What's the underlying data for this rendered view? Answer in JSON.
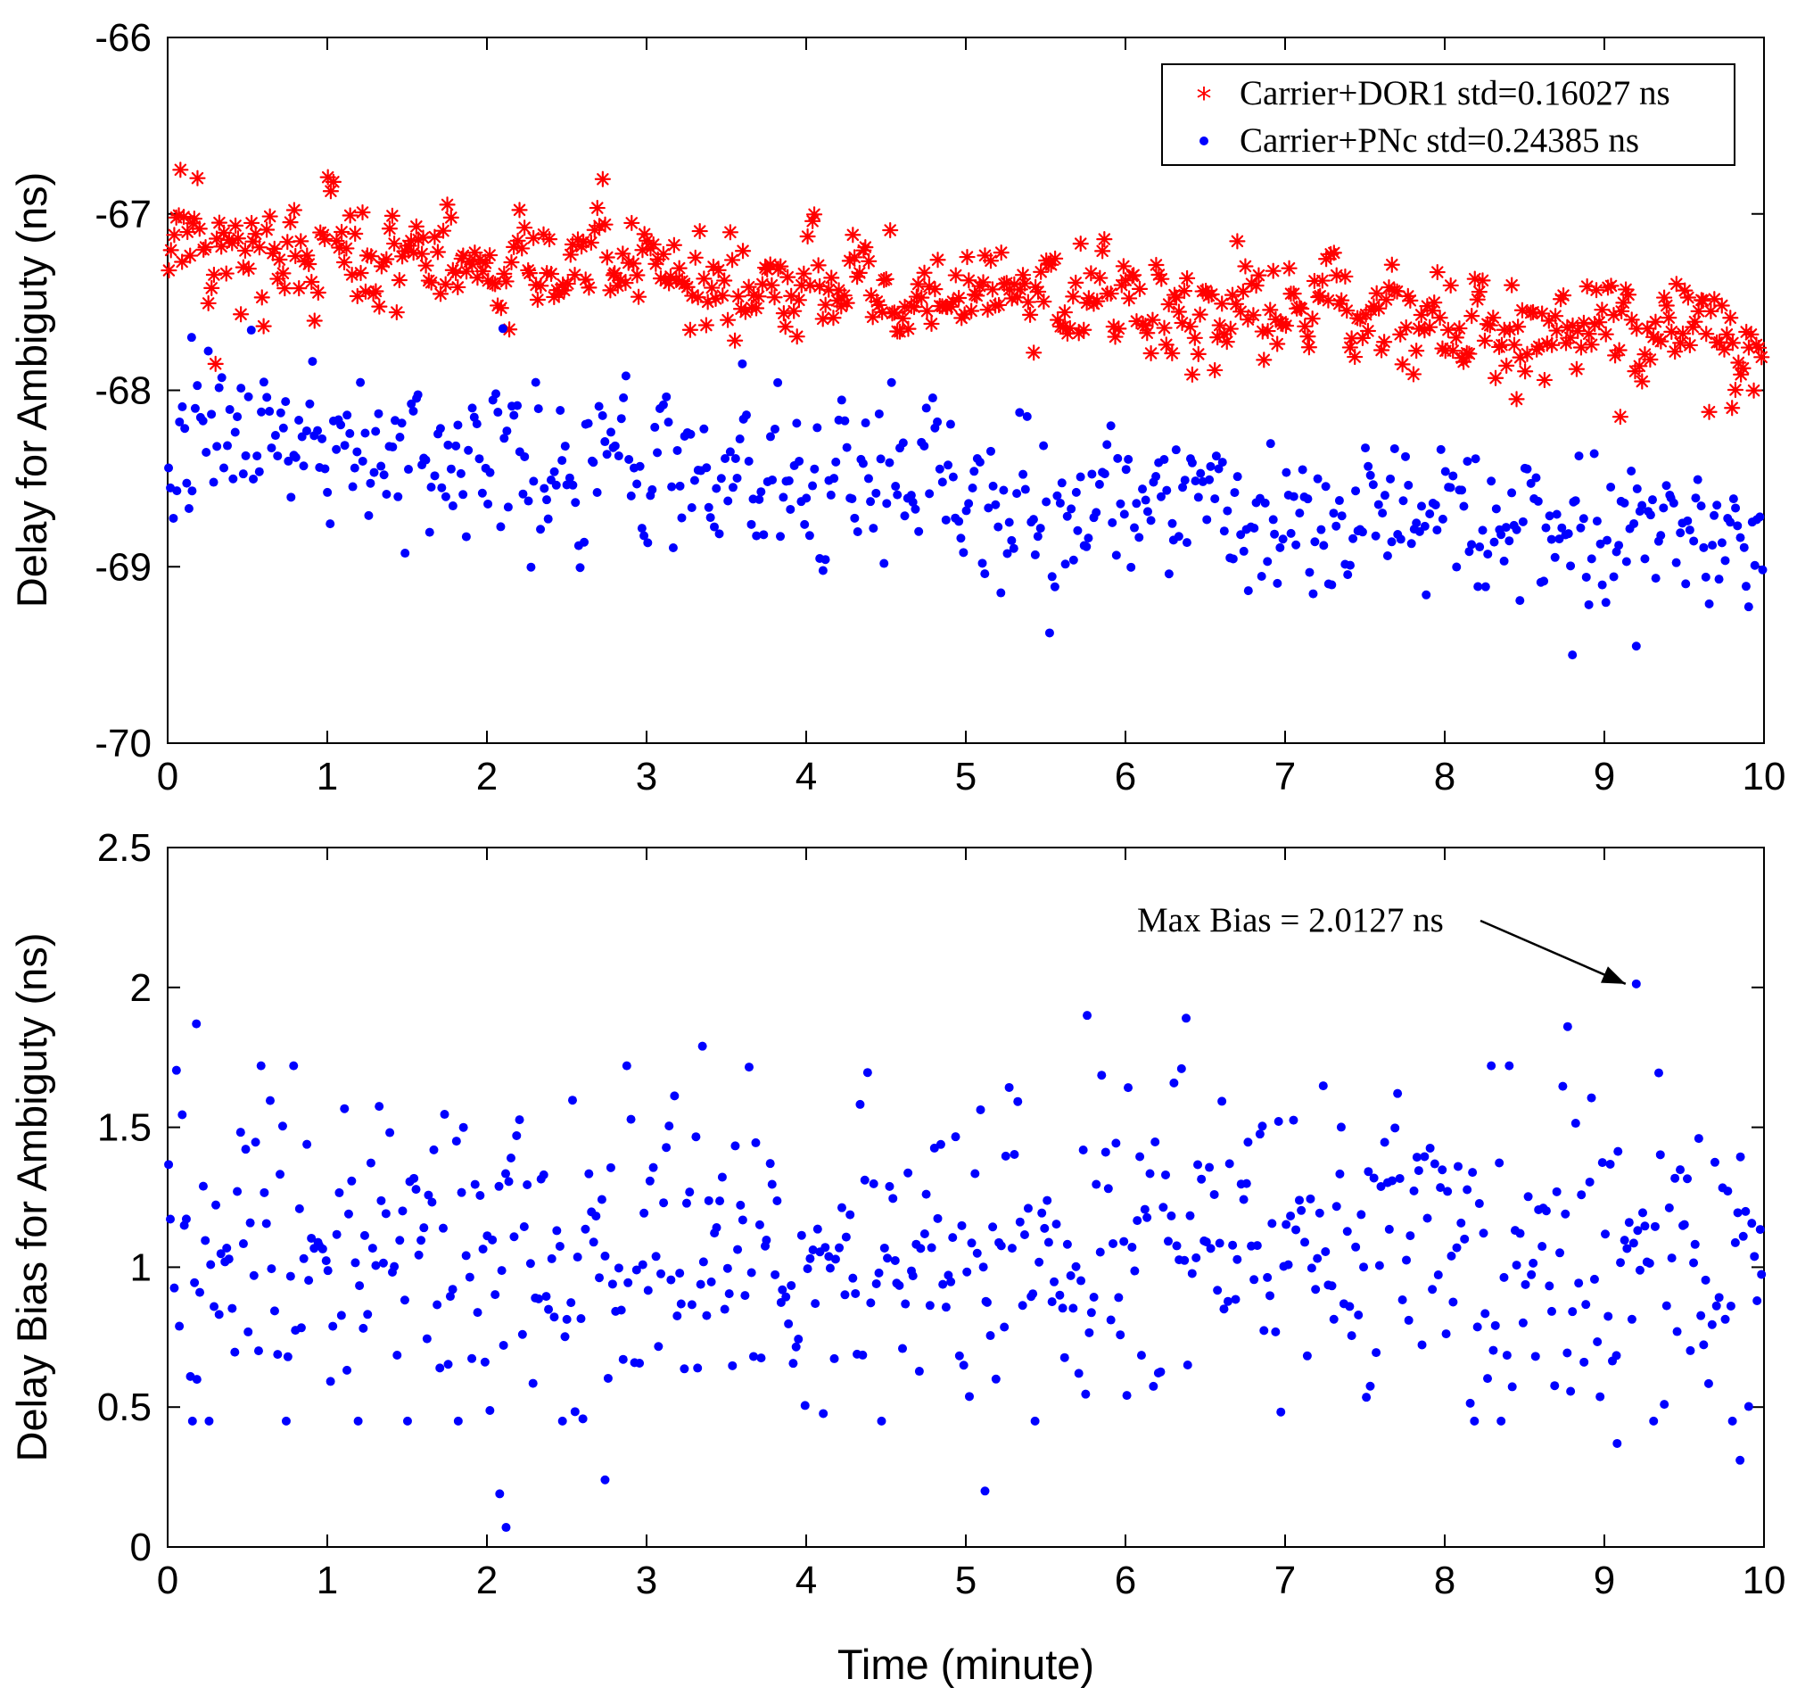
{
  "chart_data": [
    {
      "type": "scatter",
      "panel": "top",
      "xlabel": "",
      "ylabel": "Delay for Ambiguty (ns)",
      "xlim": [
        0,
        10
      ],
      "ylim": [
        -70,
        -66
      ],
      "xticks": [
        0,
        1,
        2,
        3,
        4,
        5,
        6,
        7,
        8,
        9,
        10
      ],
      "yticks": [
        -70,
        -69,
        -68,
        -67,
        -66
      ],
      "x_tick_labels": [
        "0",
        "1",
        "2",
        "3",
        "4",
        "5",
        "6",
        "7",
        "8",
        "9",
        "10"
      ],
      "y_tick_labels": [
        "-70",
        "-69",
        "-68",
        "-67",
        "-66"
      ],
      "legend_position": "top-right",
      "series": [
        {
          "name": "Carrier+DOR1 std=0.16027 ns",
          "marker": "asterisk",
          "color": "#ff0000",
          "start": -67.15,
          "end": -67.72,
          "std": 0.16027,
          "count": 600,
          "x_range": [
            0,
            10
          ],
          "notable_points": [
            [
              0.08,
              -66.75
            ],
            [
              0.3,
              -67.85
            ],
            [
              9.8,
              -68.1
            ],
            [
              8.45,
              -68.05
            ],
            [
              9.1,
              -68.15
            ]
          ]
        },
        {
          "name": "Carrier+PNc std=0.24385 ns",
          "marker": "dot",
          "color": "#0000ff",
          "start": -68.28,
          "end": -68.9,
          "std": 0.24385,
          "count": 600,
          "x_range": [
            0,
            10
          ],
          "notable_points": [
            [
              0.15,
              -67.7
            ],
            [
              2.1,
              -67.65
            ],
            [
              3.6,
              -67.85
            ],
            [
              8.8,
              -69.5
            ],
            [
              9.2,
              -69.45
            ]
          ]
        }
      ]
    },
    {
      "type": "scatter",
      "panel": "bottom",
      "xlabel": "Time (minute)",
      "ylabel": "Delay Bias for Ambiguty (ns)",
      "xlim": [
        0,
        10
      ],
      "ylim": [
        0,
        2.5
      ],
      "xticks": [
        0,
        1,
        2,
        3,
        4,
        5,
        6,
        7,
        8,
        9,
        10
      ],
      "yticks": [
        0,
        0.5,
        1,
        1.5,
        2,
        2.5
      ],
      "x_tick_labels": [
        "0",
        "1",
        "2",
        "3",
        "4",
        "5",
        "6",
        "7",
        "8",
        "9",
        "10"
      ],
      "y_tick_labels": [
        "0",
        "0.5",
        "1",
        "1.5",
        "2",
        "2.5"
      ],
      "series": [
        {
          "name": "Delay Bias",
          "marker": "dot",
          "color": "#0000ff",
          "mean": 1.05,
          "spread": 0.3,
          "count": 600,
          "x_range": [
            0,
            10
          ],
          "notable_points": [
            [
              9.2,
              2.0127
            ],
            [
              2.12,
              0.07
            ],
            [
              2.08,
              0.19
            ],
            [
              5.12,
              0.2
            ],
            [
              2.74,
              0.24
            ],
            [
              9.85,
              0.31
            ],
            [
              9.08,
              0.37
            ],
            [
              0.18,
              1.87
            ],
            [
              5.76,
              1.9
            ],
            [
              6.38,
              1.89
            ],
            [
              8.77,
              1.86
            ],
            [
              3.35,
              1.79
            ]
          ]
        }
      ],
      "annotation": {
        "text": "Max Bias = 2.0127 ns",
        "target": [
          9.2,
          2.0127
        ],
        "text_anchor": [
          8.35,
          2.22
        ]
      }
    }
  ]
}
